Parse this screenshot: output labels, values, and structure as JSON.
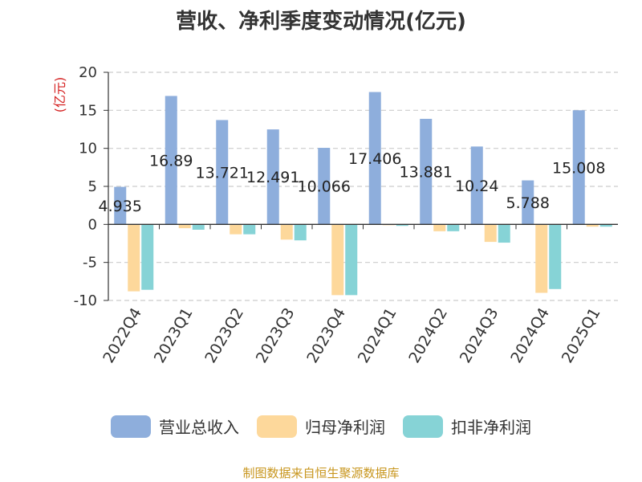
{
  "chart_data": {
    "type": "bar",
    "title": "营收、净利季度变动情况(亿元)",
    "ylabel": "(亿元)",
    "ylim": [
      -10,
      20
    ],
    "yticks": [
      20,
      15,
      10,
      5,
      0,
      -5,
      -10
    ],
    "grid": true,
    "legend_position": "bottom",
    "categories": [
      "2022Q4",
      "2023Q1",
      "2023Q2",
      "2023Q3",
      "2023Q4",
      "2024Q1",
      "2024Q2",
      "2024Q3",
      "2024Q4",
      "2025Q1"
    ],
    "series": [
      {
        "name": "营业总收入",
        "color": "#8eaedc",
        "values": [
          4.935,
          16.89,
          13.721,
          12.491,
          10.066,
          17.406,
          13.881,
          10.24,
          5.788,
          15.008
        ],
        "labels": [
          "4.935",
          "16.89",
          "13.721",
          "12.491",
          "10.066",
          "17.406",
          "13.881",
          "10.24",
          "5.788",
          "15.008"
        ]
      },
      {
        "name": "归母净利润",
        "color": "#fdd89b",
        "values": [
          -8.8,
          -0.5,
          -1.3,
          -2.0,
          -9.3,
          -0.1,
          -0.9,
          -2.3,
          -9.0,
          -0.3
        ]
      },
      {
        "name": "扣非净利润",
        "color": "#86d3d6",
        "values": [
          -8.6,
          -0.7,
          -1.3,
          -2.1,
          -9.3,
          -0.2,
          -0.9,
          -2.4,
          -8.5,
          -0.3
        ]
      }
    ]
  },
  "source": "制图数据来自恒生聚源数据库"
}
